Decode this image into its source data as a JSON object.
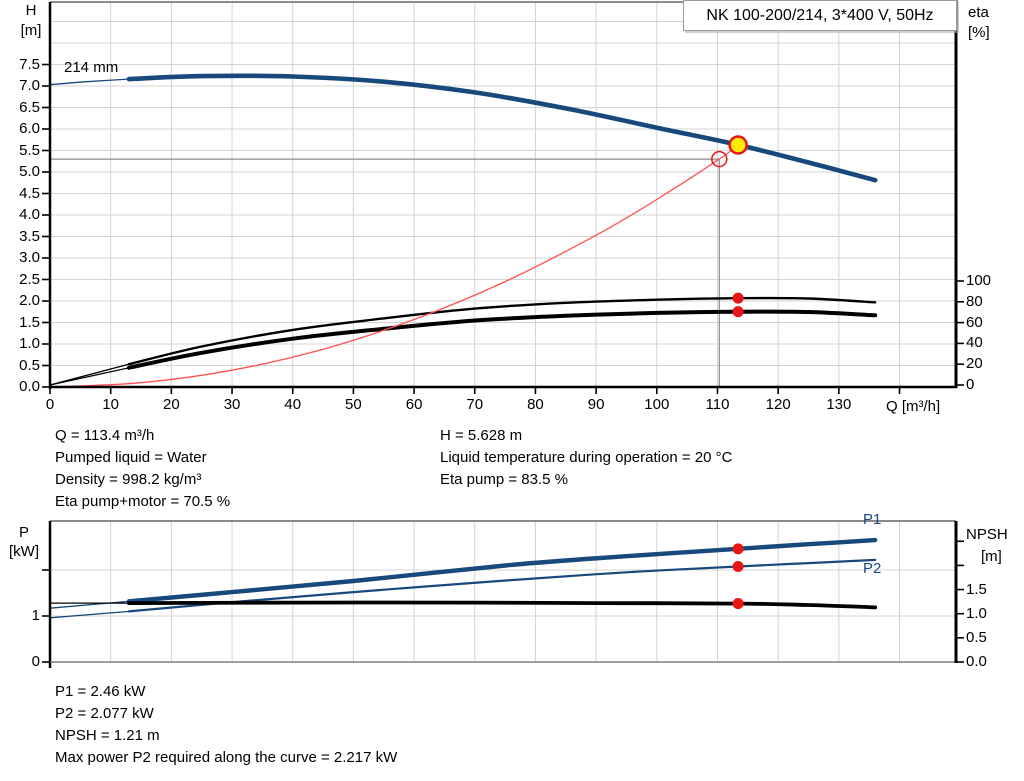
{
  "window": {
    "background": "#ffffff"
  },
  "colors": {
    "curve_blue": "#17497c",
    "curve_black": "#000000",
    "system_red": "#ff5050",
    "marker_red": "#e81616",
    "marker_yellow": "#ffe80a",
    "grid": "#d4d4d4",
    "crosshair": "#8a8a8a",
    "frame": "#444444"
  },
  "title_box": {
    "label": "NK 100-200/214, 3*400 V, 50Hz"
  },
  "chart_data": [
    {
      "type": "line",
      "name": "qh-eta-chart",
      "title": "NK 100-200/214, 3*400 V, 50Hz",
      "impeller_label": "214 mm",
      "xlabel": "Q [m³/h]",
      "ylabel_left": [
        "H",
        "[m]"
      ],
      "ylabel_right": [
        "eta",
        "[%]"
      ],
      "xlim": [
        0,
        149.3
      ],
      "ylim_left": [
        0,
        8.95
      ],
      "ylim_right": [
        0,
        100
      ],
      "x_ticks": [
        0,
        10,
        20,
        30,
        40,
        50,
        60,
        70,
        80,
        90,
        100,
        110,
        120,
        130
      ],
      "x_grid": [
        10,
        20,
        30,
        40,
        50,
        60,
        70,
        80,
        90,
        100,
        110,
        120,
        130,
        140
      ],
      "y_ticks_left": [
        0,
        0.5,
        1,
        1.5,
        2,
        2.5,
        3,
        3.5,
        4,
        4.5,
        5,
        5.5,
        6,
        6.5,
        7,
        7.5
      ],
      "y_grid_left": [
        0.5,
        1,
        1.5,
        2,
        2.5,
        3,
        3.5,
        4,
        4.5,
        5,
        5.5,
        6,
        6.5,
        7,
        7.5,
        8,
        8.5
      ],
      "y_ticks_right": [
        0,
        20,
        40,
        60,
        80,
        100
      ],
      "series": [
        {
          "name": "head-curve",
          "axis": "h",
          "color": "curve_blue",
          "width": 4.6,
          "thin_until": 13,
          "points": [
            [
              0,
              7.03
            ],
            [
              6,
              7.1
            ],
            [
              13,
              7.16
            ],
            [
              25,
              7.23
            ],
            [
              40,
              7.22
            ],
            [
              55,
              7.1
            ],
            [
              70,
              6.85
            ],
            [
              85,
              6.48
            ],
            [
              100,
              6.03
            ],
            [
              113.4,
              5.63
            ],
            [
              125,
              5.22
            ],
            [
              136,
              4.81
            ]
          ]
        },
        {
          "name": "eta-pump-curve",
          "axis": "eta",
          "color": "curve_black",
          "width": 2.4,
          "thin_until": 13,
          "points": [
            [
              0,
              0
            ],
            [
              13,
              20
            ],
            [
              25,
              37
            ],
            [
              40,
              53
            ],
            [
              55,
              64
            ],
            [
              70,
              73.5
            ],
            [
              85,
              79
            ],
            [
              100,
              82
            ],
            [
              113.4,
              83.5
            ],
            [
              125,
              83.2
            ],
            [
              136,
              79.5
            ]
          ]
        },
        {
          "name": "eta-pump-motor-curve",
          "axis": "eta",
          "color": "curve_black",
          "width": 4.0,
          "thin_until": 13,
          "points": [
            [
              0,
              0
            ],
            [
              13,
              16.5
            ],
            [
              25,
              31
            ],
            [
              40,
              44.5
            ],
            [
              55,
              54
            ],
            [
              70,
              62
            ],
            [
              85,
              66.5
            ],
            [
              100,
              69.3
            ],
            [
              113.4,
              70.5
            ],
            [
              125,
              70.2
            ],
            [
              136,
              67
            ]
          ]
        },
        {
          "name": "system-curve",
          "axis": "h",
          "color": "system_red",
          "width": 1.3,
          "points": [
            [
              0,
              0
            ],
            [
              15,
              0.1
            ],
            [
              30,
              0.39
            ],
            [
              45,
              0.88
            ],
            [
              60,
              1.57
            ],
            [
              75,
              2.45
            ],
            [
              90,
              3.53
            ],
            [
              100,
              4.36
            ],
            [
              110.3,
              5.3
            ],
            [
              113.4,
              5.628
            ]
          ]
        }
      ],
      "requested_duty_point": {
        "q": 110.3,
        "h": 5.3
      },
      "operating_point": {
        "q": 113.4,
        "h": 5.628
      },
      "eta_points": [
        {
          "q": 113.4,
          "eta": 83.5,
          "series": "eta-pump-curve"
        },
        {
          "q": 113.4,
          "eta": 70.5,
          "series": "eta-pump-motor-curve"
        }
      ]
    },
    {
      "type": "line",
      "name": "power-npsh-chart",
      "xlabel": "",
      "ylabel_left": [
        "P",
        "[kW]"
      ],
      "ylabel_right": [
        "NPSH",
        "[m]"
      ],
      "xlim": [
        0,
        149.3
      ],
      "ylim_left": [
        0,
        3.1
      ],
      "ylim_right": [
        0,
        3.0
      ],
      "x_grid": [
        10,
        20,
        30,
        40,
        50,
        60,
        70,
        80,
        90,
        100,
        110,
        120,
        130,
        140
      ],
      "y_ticks_left": [
        0,
        1
      ],
      "y_ticks_left_unlabeled": [
        2
      ],
      "y_grid_left": [
        1,
        2
      ],
      "y_ticks_right": [
        0,
        0.5,
        1,
        1.5
      ],
      "y_ticks_right_unlabeled": [
        2,
        2.5
      ],
      "series": [
        {
          "name": "p1-curve",
          "axis": "p",
          "color": "curve_blue",
          "width": 4.4,
          "thin_until": 13,
          "label": "P1",
          "points": [
            [
              0,
              1.17
            ],
            [
              13,
              1.32
            ],
            [
              30,
              1.52
            ],
            [
              50,
              1.76
            ],
            [
              76,
              2.11
            ],
            [
              95,
              2.3
            ],
            [
              113.4,
              2.46
            ],
            [
              125,
              2.56
            ],
            [
              136,
              2.65
            ]
          ]
        },
        {
          "name": "p2-curve",
          "axis": "p",
          "color": "curve_blue",
          "width": 2.2,
          "thin_until": 13,
          "label": "P2",
          "points": [
            [
              0,
              0.96
            ],
            [
              13,
              1.1
            ],
            [
              30,
              1.3
            ],
            [
              50,
              1.52
            ],
            [
              76,
              1.78
            ],
            [
              95,
              1.95
            ],
            [
              113.4,
              2.077
            ],
            [
              125,
              2.15
            ],
            [
              136,
              2.22
            ]
          ]
        },
        {
          "name": "npsh-curve",
          "axis": "npsh",
          "color": "curve_black",
          "width": 3.8,
          "thin_until": 13,
          "points": [
            [
              0,
              1.22
            ],
            [
              13,
              1.22
            ],
            [
              40,
              1.23
            ],
            [
              70,
              1.23
            ],
            [
              90,
              1.22
            ],
            [
              113.4,
              1.21
            ],
            [
              125,
              1.18
            ],
            [
              136,
              1.13
            ]
          ]
        }
      ],
      "series_labels": {
        "p1": "P1",
        "p2": "P2"
      },
      "markers": [
        {
          "q": 113.4,
          "value": 2.46,
          "axis": "p",
          "series": "p1-curve"
        },
        {
          "q": 113.4,
          "value": 2.077,
          "axis": "p",
          "series": "p2-curve"
        },
        {
          "q": 113.4,
          "value": 1.21,
          "axis": "npsh",
          "series": "npsh-curve"
        }
      ]
    }
  ],
  "info_top": {
    "left": [
      "Q = 113.4 m³/h",
      "Pumped liquid = Water",
      "Density = 998.2 kg/m³",
      "Eta pump+motor = 70.5 %"
    ],
    "right": [
      "H = 5.628 m",
      "Liquid temperature during operation = 20 °C",
      "Eta pump = 83.5 %"
    ]
  },
  "info_bottom": {
    "lines": [
      "P1 = 2.46 kW",
      "P2 = 2.077 kW",
      "NPSH = 1.21 m",
      "Max power P2 required along the curve = 2.217 kW"
    ]
  }
}
